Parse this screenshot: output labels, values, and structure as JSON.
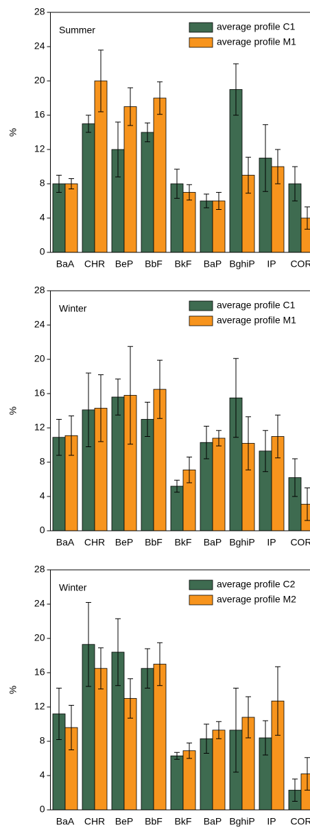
{
  "chart_data": [
    {
      "type": "bar",
      "annotation": "Summer",
      "ylabel": "%",
      "categories": [
        "BaA",
        "CHR",
        "BeP",
        "BbF",
        "BkF",
        "BaP",
        "BghiP",
        "IP",
        "COR"
      ],
      "series": [
        {
          "name": "average profile C1",
          "color": "#3e6b50",
          "values": [
            8,
            15,
            12,
            14,
            8,
            6,
            19,
            11,
            8
          ],
          "errors": [
            1,
            1,
            3.2,
            1.1,
            1.7,
            0.8,
            3,
            3.9,
            2
          ]
        },
        {
          "name": "average profile M1",
          "color": "#f7941d",
          "values": [
            8,
            20,
            17,
            18,
            7,
            6,
            9,
            10,
            4
          ],
          "errors": [
            0.6,
            3.6,
            2.2,
            1.9,
            0.9,
            1,
            2.1,
            2,
            1.3
          ]
        }
      ],
      "ylim": [
        0,
        28
      ],
      "yticks": [
        0,
        4,
        8,
        12,
        16,
        20,
        24,
        28
      ]
    },
    {
      "type": "bar",
      "annotation": "Winter",
      "ylabel": "%",
      "categories": [
        "BaA",
        "CHR",
        "BeP",
        "BbF",
        "BkF",
        "BaP",
        "BghiP",
        "IP",
        "COR"
      ],
      "series": [
        {
          "name": "average profile C1",
          "color": "#3e6b50",
          "values": [
            10.9,
            14.1,
            15.6,
            13,
            5.2,
            10.3,
            15.5,
            9.3,
            6.2
          ],
          "errors": [
            2.1,
            4.3,
            2.1,
            2,
            0.7,
            1.9,
            4.6,
            2.4,
            2.2
          ]
        },
        {
          "name": "average profile M1",
          "color": "#f7941d",
          "values": [
            11.1,
            14.3,
            15.8,
            16.5,
            7.1,
            10.8,
            10.2,
            11,
            3.1
          ],
          "errors": [
            2.3,
            3.9,
            5.7,
            3.4,
            1.5,
            0.9,
            3.1,
            2.5,
            1.9
          ]
        }
      ],
      "ylim": [
        0,
        28
      ],
      "yticks": [
        0,
        4,
        8,
        12,
        16,
        20,
        24,
        28
      ]
    },
    {
      "type": "bar",
      "annotation": "Winter",
      "ylabel": "%",
      "categories": [
        "BaA",
        "CHR",
        "BeP",
        "BbF",
        "BkF",
        "BaP",
        "BghiP",
        "IP",
        "COR"
      ],
      "series": [
        {
          "name": "average profile C2",
          "color": "#3e6b50",
          "values": [
            11.2,
            19.3,
            18.4,
            16.5,
            6.3,
            8.3,
            9.3,
            8.4,
            2.3
          ],
          "errors": [
            3,
            4.9,
            3.9,
            2.3,
            0.4,
            1.7,
            4.9,
            2,
            1.3
          ]
        },
        {
          "name": "average profile M2",
          "color": "#f7941d",
          "values": [
            9.6,
            16.5,
            13,
            17,
            6.9,
            9.3,
            10.8,
            12.7,
            4.2
          ],
          "errors": [
            2.6,
            2.4,
            2.3,
            2.5,
            0.9,
            1,
            2.4,
            4,
            1.9
          ]
        }
      ],
      "ylim": [
        0,
        28
      ],
      "yticks": [
        0,
        4,
        8,
        12,
        16,
        20,
        24,
        28
      ]
    }
  ]
}
